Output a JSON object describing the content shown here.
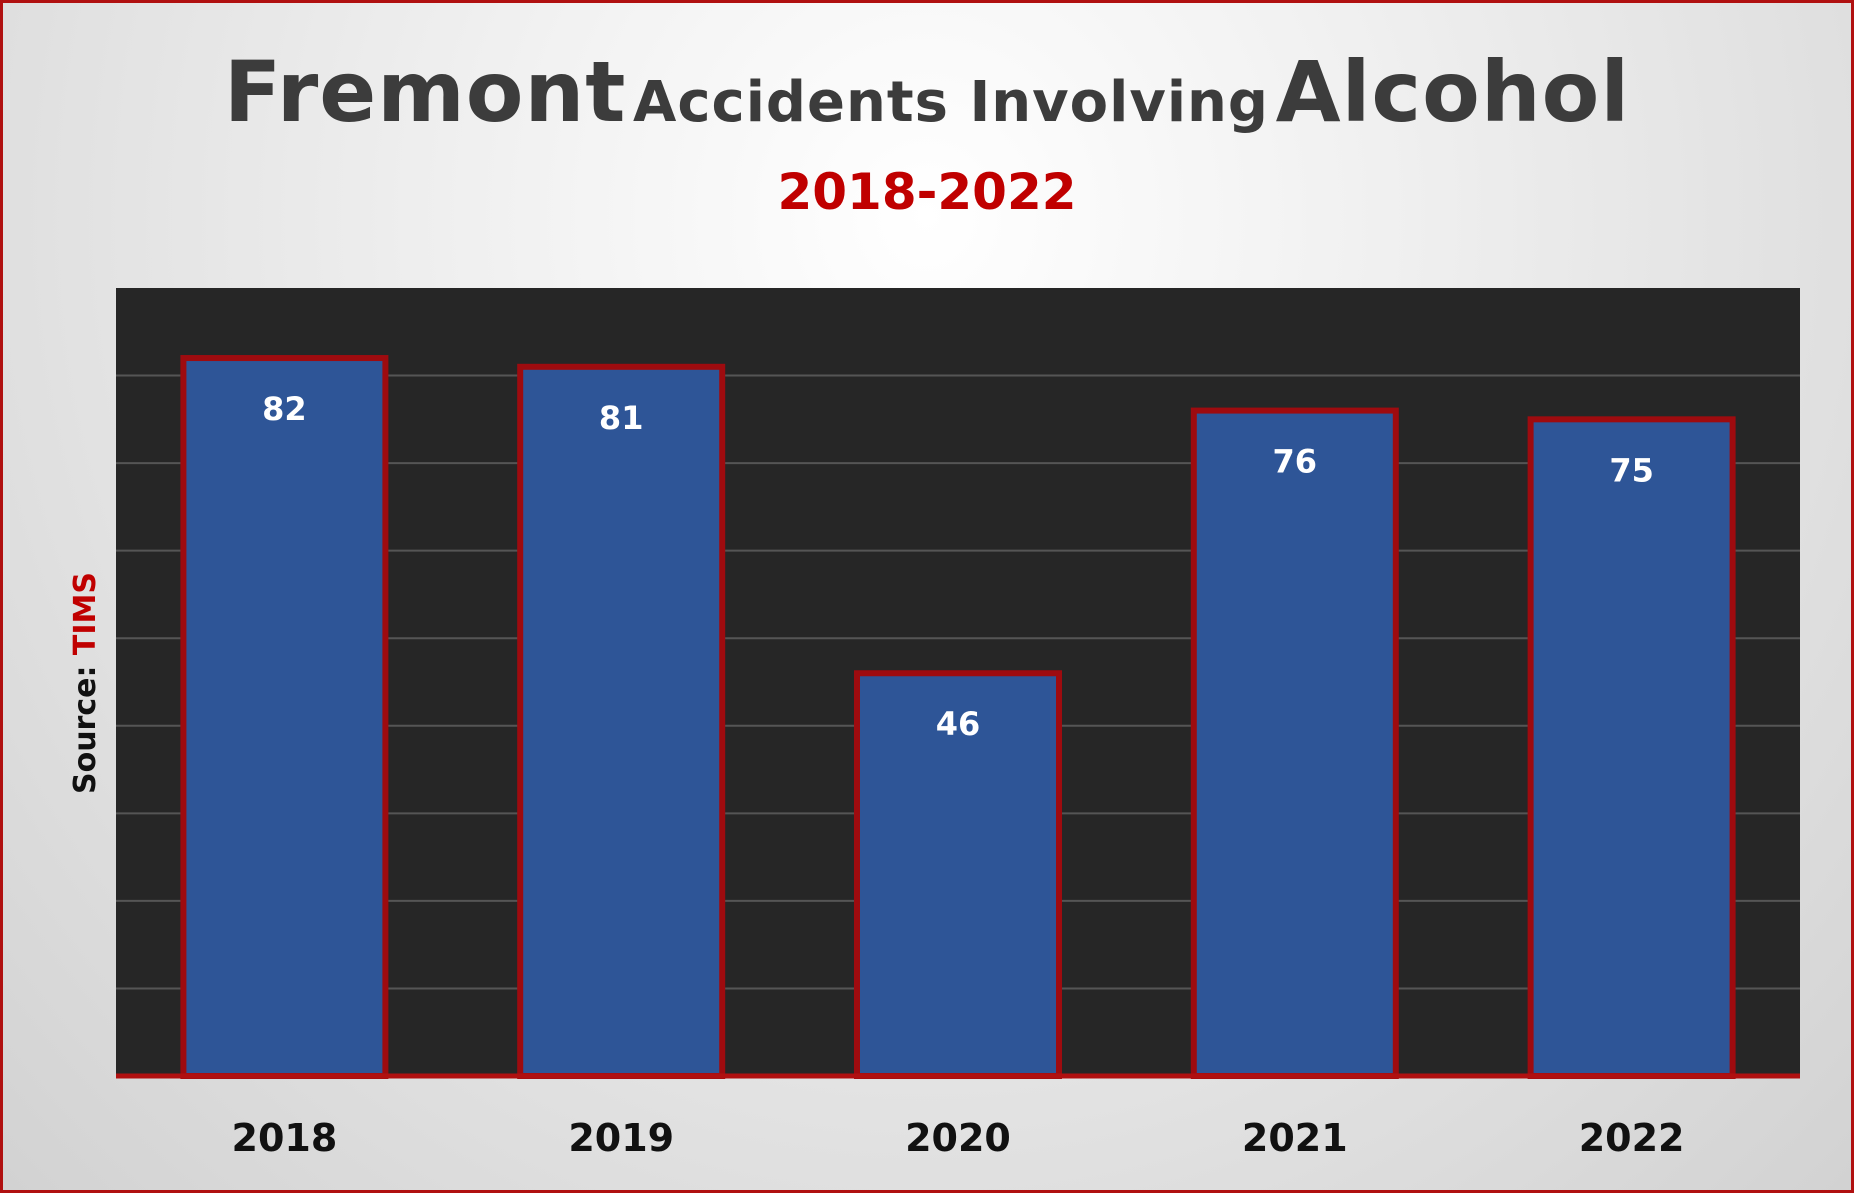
{
  "title": {
    "word1": "Fremont",
    "word2": "Accidents Involving",
    "word3": "Alcohol"
  },
  "subtitle": "2018-2022",
  "source": {
    "label": "Source:",
    "name": "TIMS"
  },
  "colors": {
    "plot_bg": "#262626",
    "bar_fill": "#2e5597",
    "bar_border": "#9e0b0f",
    "gridline": "#555555",
    "axis_line": "#b01010",
    "title": "#3c3c3c",
    "accent": "#c00000"
  },
  "chart_data": {
    "type": "bar",
    "categories": [
      "2018",
      "2019",
      "2020",
      "2021",
      "2022"
    ],
    "values": [
      82,
      81,
      46,
      76,
      75
    ],
    "ylim": [
      0,
      90
    ],
    "yticks": [
      0,
      10,
      20,
      30,
      40,
      50,
      60,
      70,
      80
    ],
    "grid": true,
    "data_labels": [
      "82",
      "81",
      "46",
      "76",
      "75"
    ],
    "legend": "none"
  }
}
